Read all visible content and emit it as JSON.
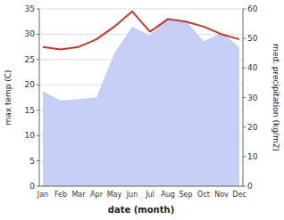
{
  "chart_data": {
    "type": "line",
    "xlabel": "date (month)",
    "ylabel": "max temp (C)",
    "y2label": "med. precipitation (kg/m2)",
    "categories": [
      "Jan",
      "Feb",
      "Mar",
      "Apr",
      "May",
      "Jun",
      "Jul",
      "Aug",
      "Sep",
      "Oct",
      "Nov",
      "Dec"
    ],
    "ylim": [
      0,
      35
    ],
    "yticks": [
      0,
      5,
      10,
      15,
      20,
      25,
      30,
      35
    ],
    "y2lim": [
      0,
      60
    ],
    "y2ticks": [
      0,
      10,
      20,
      30,
      40,
      50,
      60
    ],
    "grid": true,
    "series": [
      {
        "type": "area",
        "axis": "y2",
        "color": "#c5cef5",
        "values": [
          32.0,
          29.0,
          29.5,
          30.0,
          45.0,
          54.0,
          51.0,
          57.0,
          56.0,
          49.0,
          52.0,
          47.0
        ]
      },
      {
        "type": "line",
        "color": "#c0392b",
        "values": [
          27.5,
          27.0,
          27.5,
          29.0,
          31.5,
          34.5,
          30.5,
          33.0,
          32.5,
          31.5,
          30.0,
          29.0
        ]
      }
    ]
  }
}
